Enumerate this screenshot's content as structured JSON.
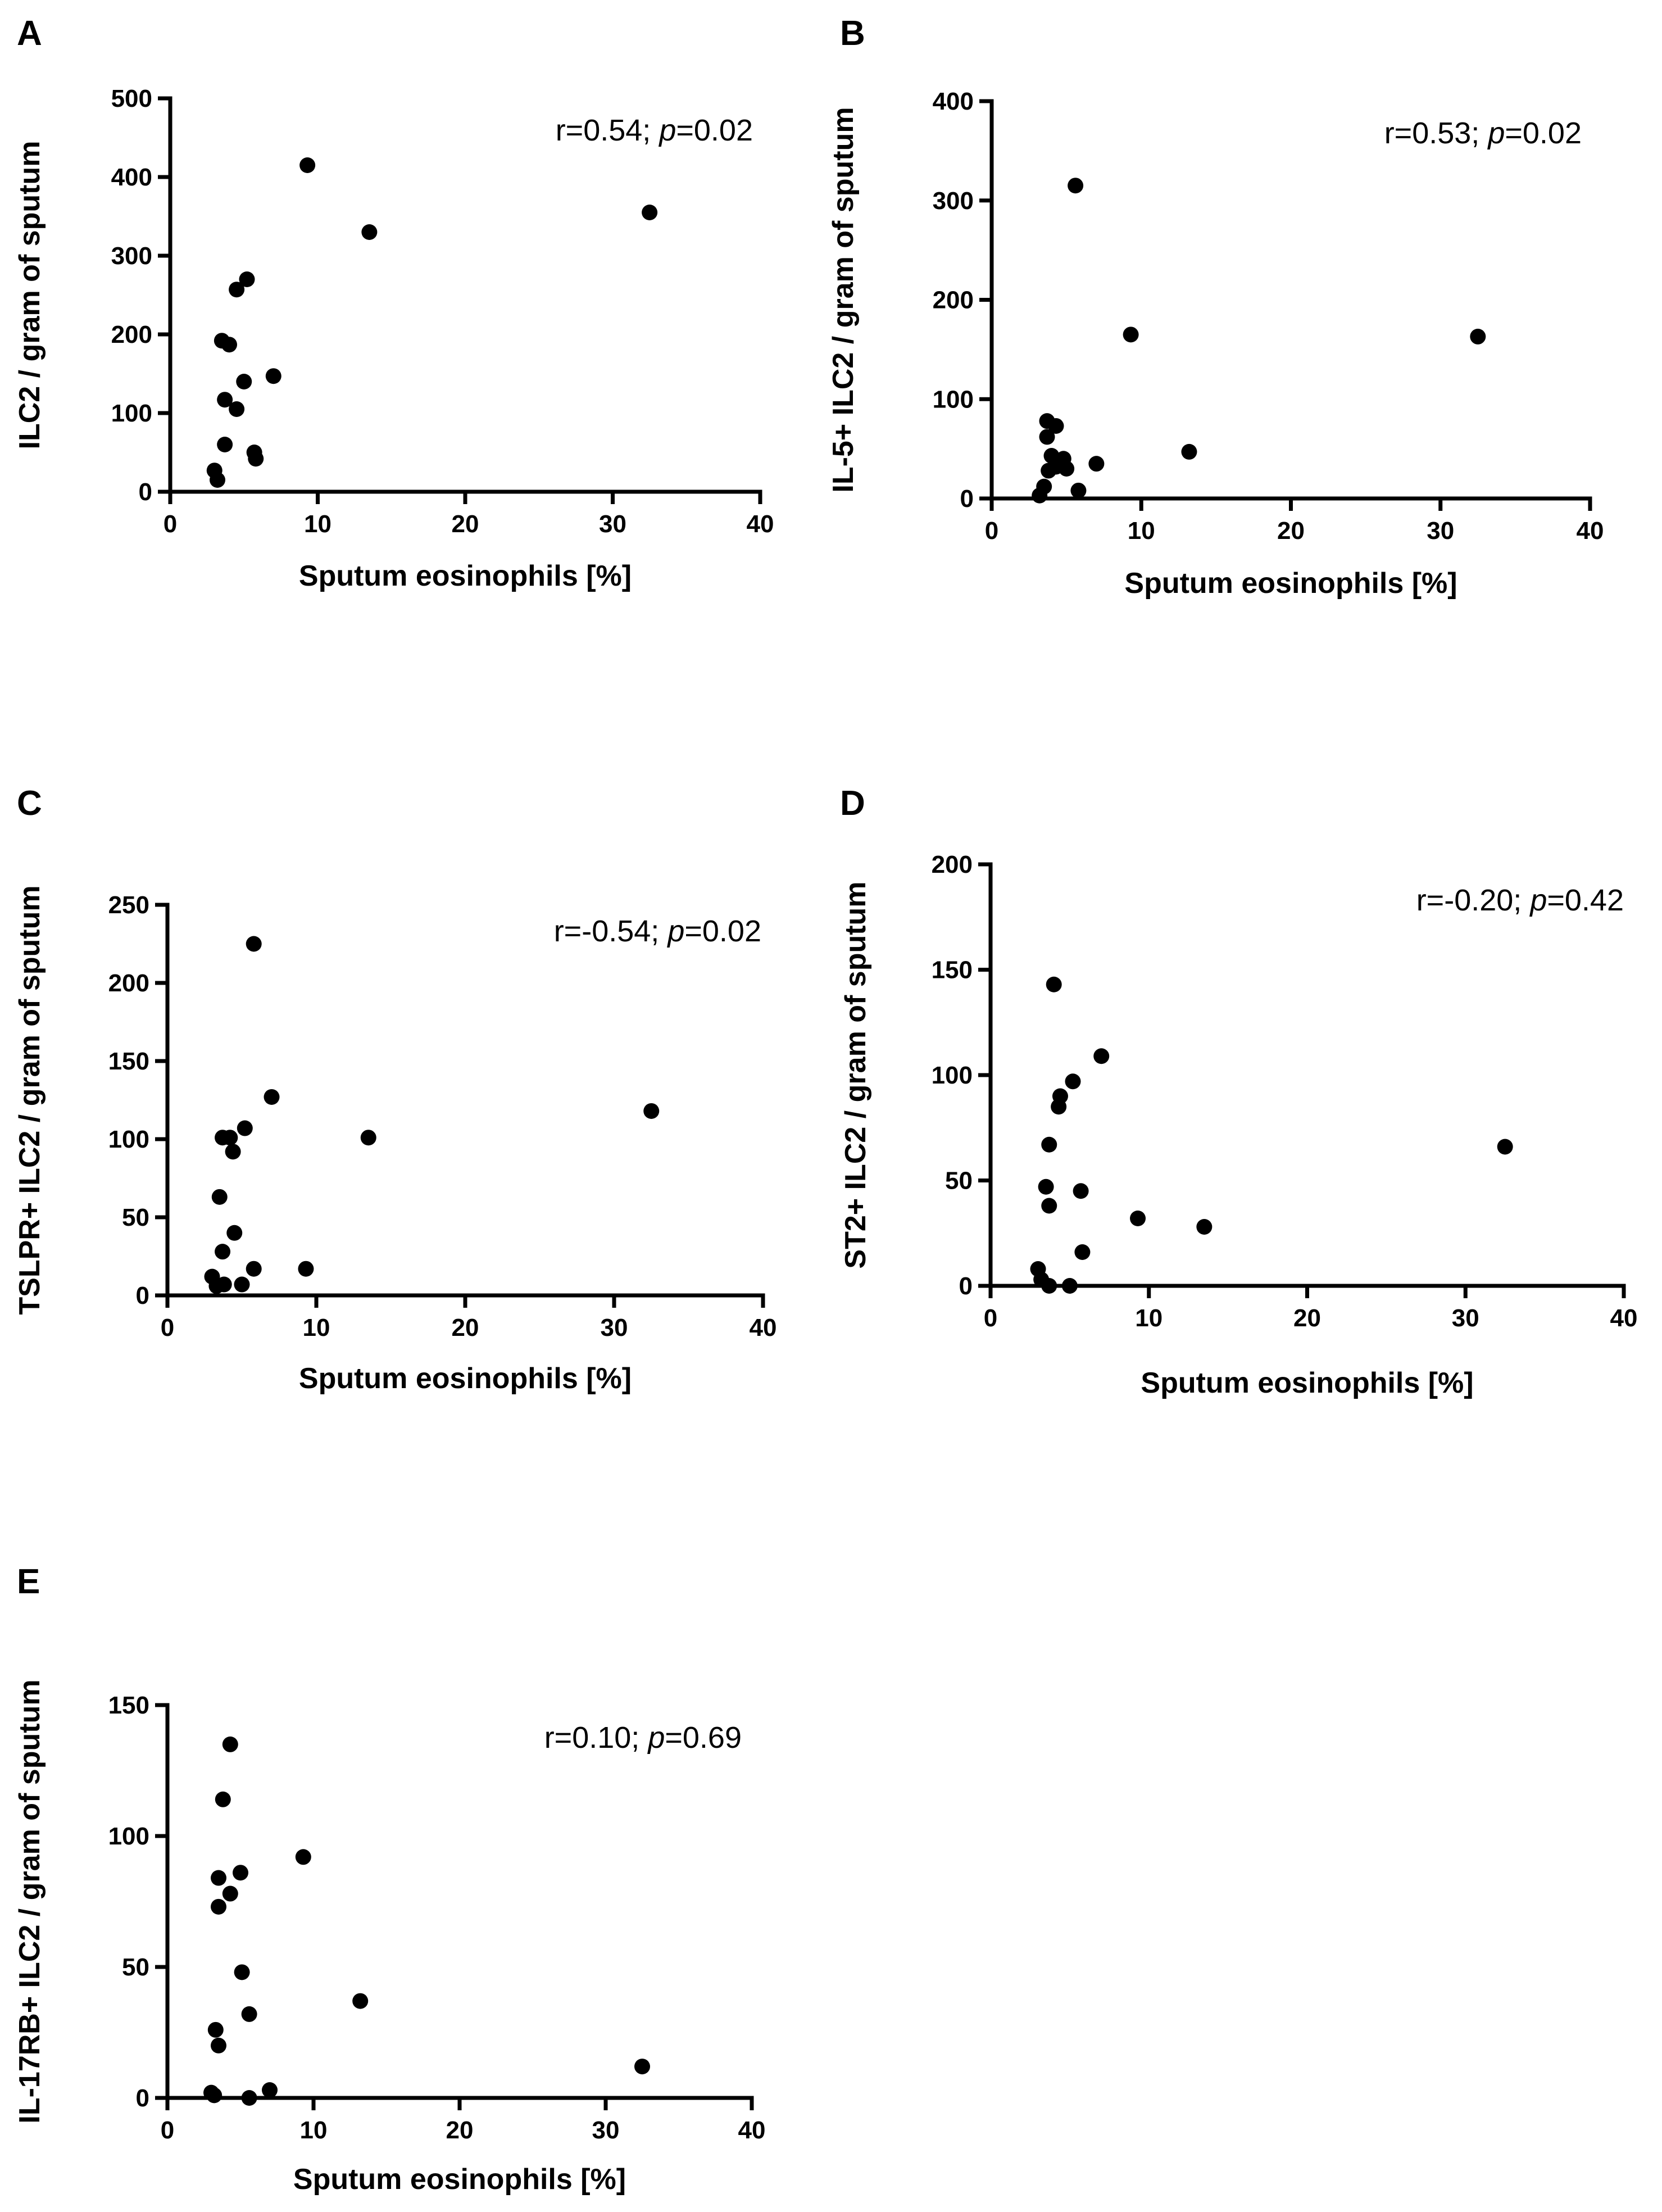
{
  "chart_data": [
    {
      "type": "scatter",
      "panel": "A",
      "ylabel": "ILC2 / gram of sputum",
      "xlabel": "Sputum eosinophils [%]",
      "xlim": [
        0,
        40
      ],
      "ylim": [
        0,
        500
      ],
      "xticks": [
        0,
        10,
        20,
        30,
        40
      ],
      "yticks": [
        0,
        100,
        200,
        300,
        400,
        500
      ],
      "annotation": {
        "r_text": "r=0.54; ",
        "p_label": "p",
        "p_text": "=0.02"
      },
      "points": [
        {
          "x": 9.3,
          "y": 415
        },
        {
          "x": 13.5,
          "y": 330
        },
        {
          "x": 32.5,
          "y": 355
        },
        {
          "x": 5.2,
          "y": 270
        },
        {
          "x": 4.5,
          "y": 257
        },
        {
          "x": 3.5,
          "y": 192
        },
        {
          "x": 4.0,
          "y": 187
        },
        {
          "x": 5.0,
          "y": 140
        },
        {
          "x": 7.0,
          "y": 147
        },
        {
          "x": 3.7,
          "y": 117
        },
        {
          "x": 4.5,
          "y": 105
        },
        {
          "x": 3.7,
          "y": 60
        },
        {
          "x": 5.7,
          "y": 50
        },
        {
          "x": 5.8,
          "y": 42
        },
        {
          "x": 3.0,
          "y": 27
        },
        {
          "x": 3.2,
          "y": 15
        }
      ]
    },
    {
      "type": "scatter",
      "panel": "B",
      "ylabel": "IL-5+ ILC2 / gram of sputum",
      "xlabel": "Sputum eosinophils [%]",
      "xlim": [
        0,
        40
      ],
      "ylim": [
        0,
        400
      ],
      "xticks": [
        0,
        10,
        20,
        30,
        40
      ],
      "yticks": [
        0,
        100,
        200,
        300,
        400
      ],
      "annotation": {
        "r_text": "r=0.53; ",
        "p_label": "p",
        "p_text": "=0.02"
      },
      "points": [
        {
          "x": 5.6,
          "y": 315
        },
        {
          "x": 9.3,
          "y": 165
        },
        {
          "x": 32.5,
          "y": 163
        },
        {
          "x": 3.7,
          "y": 78
        },
        {
          "x": 4.3,
          "y": 73
        },
        {
          "x": 3.7,
          "y": 62
        },
        {
          "x": 13.2,
          "y": 47
        },
        {
          "x": 4.0,
          "y": 43
        },
        {
          "x": 4.8,
          "y": 40
        },
        {
          "x": 7.0,
          "y": 35
        },
        {
          "x": 4.3,
          "y": 32
        },
        {
          "x": 3.8,
          "y": 28
        },
        {
          "x": 5.0,
          "y": 30
        },
        {
          "x": 3.5,
          "y": 12
        },
        {
          "x": 5.8,
          "y": 8
        },
        {
          "x": 3.2,
          "y": 3
        }
      ]
    },
    {
      "type": "scatter",
      "panel": "C",
      "ylabel": "TSLPR+ ILC2 / gram of sputum",
      "xlabel": "Sputum eosinophils [%]",
      "xlim": [
        0,
        40
      ],
      "ylim": [
        0,
        250
      ],
      "xticks": [
        0,
        10,
        20,
        30,
        40
      ],
      "yticks": [
        0,
        50,
        100,
        150,
        200,
        250
      ],
      "annotation": {
        "r_text": "r=-0.54; ",
        "p_label": "p",
        "p_text": "=0.02"
      },
      "points": [
        {
          "x": 5.8,
          "y": 225
        },
        {
          "x": 7.0,
          "y": 127
        },
        {
          "x": 32.5,
          "y": 118
        },
        {
          "x": 5.2,
          "y": 107
        },
        {
          "x": 13.5,
          "y": 101
        },
        {
          "x": 3.7,
          "y": 101
        },
        {
          "x": 4.2,
          "y": 101
        },
        {
          "x": 4.4,
          "y": 92
        },
        {
          "x": 3.5,
          "y": 63
        },
        {
          "x": 4.5,
          "y": 40
        },
        {
          "x": 3.7,
          "y": 28
        },
        {
          "x": 5.8,
          "y": 17
        },
        {
          "x": 9.3,
          "y": 17
        },
        {
          "x": 3.0,
          "y": 12
        },
        {
          "x": 3.3,
          "y": 6
        },
        {
          "x": 3.8,
          "y": 7
        },
        {
          "x": 5.0,
          "y": 7
        }
      ]
    },
    {
      "type": "scatter",
      "panel": "D",
      "ylabel": "ST2+ ILC2 / gram of sputum",
      "xlabel": "Sputum eosinophils [%]",
      "xlim": [
        0,
        40
      ],
      "ylim": [
        0,
        200
      ],
      "xticks": [
        0,
        10,
        20,
        30,
        40
      ],
      "yticks": [
        0,
        50,
        100,
        150,
        200
      ],
      "annotation": {
        "r_text": "r=-0.20; ",
        "p_label": "p",
        "p_text": "=0.42"
      },
      "points": [
        {
          "x": 4.0,
          "y": 143
        },
        {
          "x": 7.0,
          "y": 109
        },
        {
          "x": 5.2,
          "y": 97
        },
        {
          "x": 4.4,
          "y": 90
        },
        {
          "x": 4.3,
          "y": 85
        },
        {
          "x": 3.7,
          "y": 67
        },
        {
          "x": 32.5,
          "y": 66
        },
        {
          "x": 3.5,
          "y": 47
        },
        {
          "x": 5.7,
          "y": 45
        },
        {
          "x": 3.7,
          "y": 38
        },
        {
          "x": 9.3,
          "y": 32
        },
        {
          "x": 13.5,
          "y": 28
        },
        {
          "x": 5.8,
          "y": 16
        },
        {
          "x": 3.0,
          "y": 8
        },
        {
          "x": 3.2,
          "y": 3
        },
        {
          "x": 3.7,
          "y": 0
        },
        {
          "x": 5.0,
          "y": 0
        }
      ]
    },
    {
      "type": "scatter",
      "panel": "E",
      "ylabel": "IL-17RB+ ILC2 / gram of sputum",
      "xlabel": "Sputum eosinophils [%]",
      "xlim": [
        0,
        40
      ],
      "ylim": [
        0,
        150
      ],
      "xticks": [
        0,
        10,
        20,
        30,
        40
      ],
      "yticks": [
        0,
        50,
        100,
        150
      ],
      "annotation": {
        "r_text": "r=0.10; ",
        "p_label": "p",
        "p_text": "=0.69"
      },
      "points": [
        {
          "x": 4.3,
          "y": 135
        },
        {
          "x": 3.8,
          "y": 114
        },
        {
          "x": 9.3,
          "y": 92
        },
        {
          "x": 5.0,
          "y": 86
        },
        {
          "x": 3.5,
          "y": 84
        },
        {
          "x": 4.3,
          "y": 78
        },
        {
          "x": 3.5,
          "y": 73
        },
        {
          "x": 5.1,
          "y": 48
        },
        {
          "x": 13.2,
          "y": 37
        },
        {
          "x": 5.6,
          "y": 32
        },
        {
          "x": 3.3,
          "y": 26
        },
        {
          "x": 3.5,
          "y": 20
        },
        {
          "x": 32.5,
          "y": 12
        },
        {
          "x": 7.0,
          "y": 3
        },
        {
          "x": 3.0,
          "y": 2
        },
        {
          "x": 3.2,
          "y": 1
        },
        {
          "x": 5.6,
          "y": 0
        }
      ]
    }
  ]
}
